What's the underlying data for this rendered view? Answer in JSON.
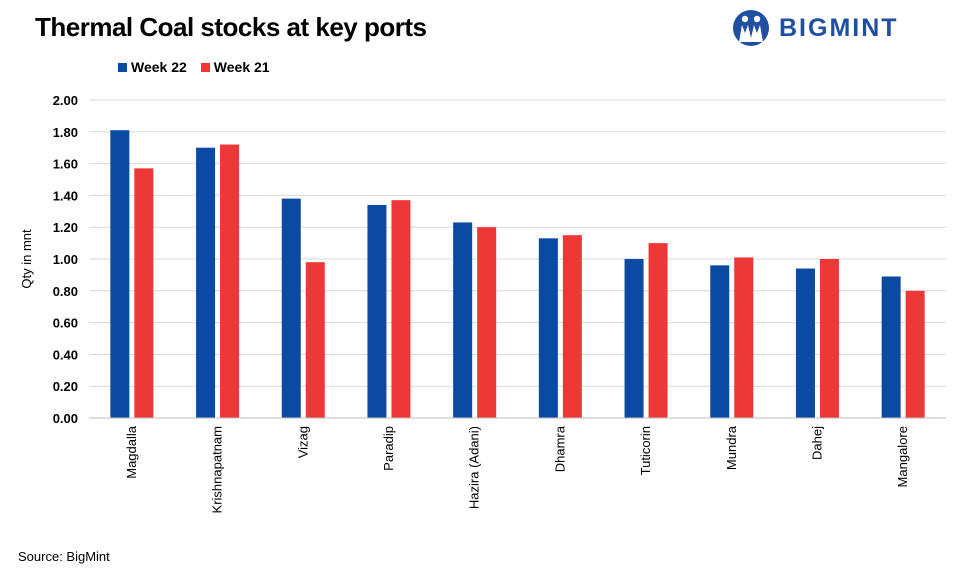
{
  "header": {
    "title": "Thermal Coal stocks at key ports",
    "logo_text": "BIGMINT"
  },
  "footer": {
    "source": "Source: BigMint"
  },
  "colors": {
    "series1": "#0b4aa2",
    "series2": "#ee3737",
    "logo": "#1f4fa3"
  },
  "chart_data": {
    "type": "bar",
    "title": "Thermal Coal stocks at key ports",
    "ylabel": "Qty in mnt",
    "xlabel": "",
    "ylim": [
      0,
      2.0
    ],
    "yticks": [
      "0.00",
      "0.20",
      "0.40",
      "0.60",
      "0.80",
      "1.00",
      "1.20",
      "1.40",
      "1.60",
      "1.80",
      "2.00"
    ],
    "grid": true,
    "legend_position": "top-left",
    "categories": [
      "Magdalla",
      "Krishnapatnam",
      "Vizag",
      "Paradip",
      "Hazira (Adani)",
      "Dhamra",
      "Tuticorin",
      "Mundra",
      "Dahej",
      "Mangalore"
    ],
    "series": [
      {
        "name": "Week 22",
        "values": [
          1.81,
          1.7,
          1.38,
          1.34,
          1.23,
          1.13,
          1.0,
          0.96,
          0.94,
          0.89
        ]
      },
      {
        "name": "Week 21",
        "values": [
          1.57,
          1.72,
          0.98,
          1.37,
          1.2,
          1.15,
          1.1,
          1.01,
          1.0,
          0.8
        ]
      }
    ]
  }
}
